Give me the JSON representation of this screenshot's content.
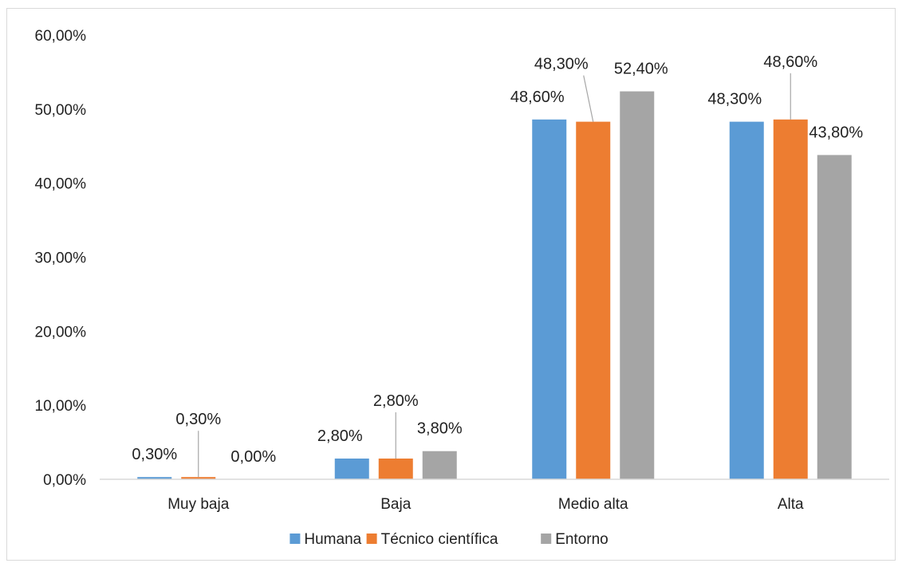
{
  "chart_data": {
    "type": "bar",
    "title": "",
    "xlabel": "",
    "ylabel": "",
    "categories": [
      "Muy baja",
      "Baja",
      "Medio alta",
      "Alta"
    ],
    "series": [
      {
        "name": "Humana",
        "color": "#5b9bd5",
        "values": [
          0.3,
          2.8,
          48.6,
          48.3
        ],
        "labels": [
          "0,30%",
          "2,80%",
          "48,60%",
          "48,30%"
        ]
      },
      {
        "name": "Técnico científica",
        "color": "#ed7d31",
        "values": [
          0.3,
          2.8,
          48.3,
          48.6
        ],
        "labels": [
          "0,30%",
          "2,80%",
          "48,30%",
          "48,60%"
        ]
      },
      {
        "name": "Entorno",
        "color": "#a5a5a5",
        "values": [
          0.0,
          3.8,
          52.4,
          43.8
        ],
        "labels": [
          "0,00%",
          "3,80%",
          "52,40%",
          "43,80%"
        ]
      }
    ],
    "ylim": [
      0,
      60
    ],
    "yticks": [
      0,
      10,
      20,
      30,
      40,
      50,
      60
    ],
    "ytick_labels": [
      "0,00%",
      "10,00%",
      "20,00%",
      "30,00%",
      "40,00%",
      "50,00%",
      "60,00%"
    ],
    "grid": false,
    "legend_position": "bottom"
  }
}
